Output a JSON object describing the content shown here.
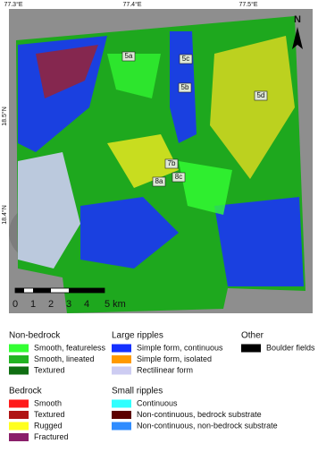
{
  "map": {
    "lon_labels": [
      "77.3°E",
      "77.4°E",
      "77.5°E"
    ],
    "lat_labels": [
      "18.5°N",
      "18.4°N"
    ],
    "north": "N",
    "sites": [
      "5a",
      "5c",
      "5b",
      "5d",
      "7b",
      "8a",
      "8c"
    ],
    "scale_labels": [
      "0",
      "1",
      "2",
      "3",
      "4",
      "5 km"
    ]
  },
  "legend": [
    {
      "title": "Non-bedrock",
      "items": [
        {
          "label": "Smooth, featureless",
          "color": "#33ff33"
        },
        {
          "label": "Smooth, lineated",
          "color": "#22b422"
        },
        {
          "label": "Textured",
          "color": "#0f6e12"
        }
      ]
    },
    {
      "title": "Large ripples",
      "items": [
        {
          "label": "Simple form, continuous",
          "color": "#1430ff"
        },
        {
          "label": "Simple form, isolated",
          "color": "#ff9a00"
        },
        {
          "label": "Rectilinear form",
          "color": "#cdccf2"
        }
      ]
    },
    {
      "title": "Other",
      "items": [
        {
          "label": "Boulder fields",
          "color": "#000000"
        }
      ]
    },
    {
      "title": "Bedrock",
      "items": [
        {
          "label": "Smooth",
          "color": "#ff1a1a"
        },
        {
          "label": "Textured",
          "color": "#b01414"
        },
        {
          "label": "Rugged",
          "color": "#ffff1e"
        },
        {
          "label": "Fractured",
          "color": "#8a1f6a"
        }
      ]
    },
    {
      "title": "Small ripples",
      "items": [
        {
          "label": "Continuous",
          "color": "#30ffff"
        },
        {
          "label": "Non-continuous, bedrock substrate",
          "color": "#5c0000"
        },
        {
          "label": "Non-continuous, non-bedrock substrate",
          "color": "#2f8cff"
        }
      ]
    }
  ]
}
